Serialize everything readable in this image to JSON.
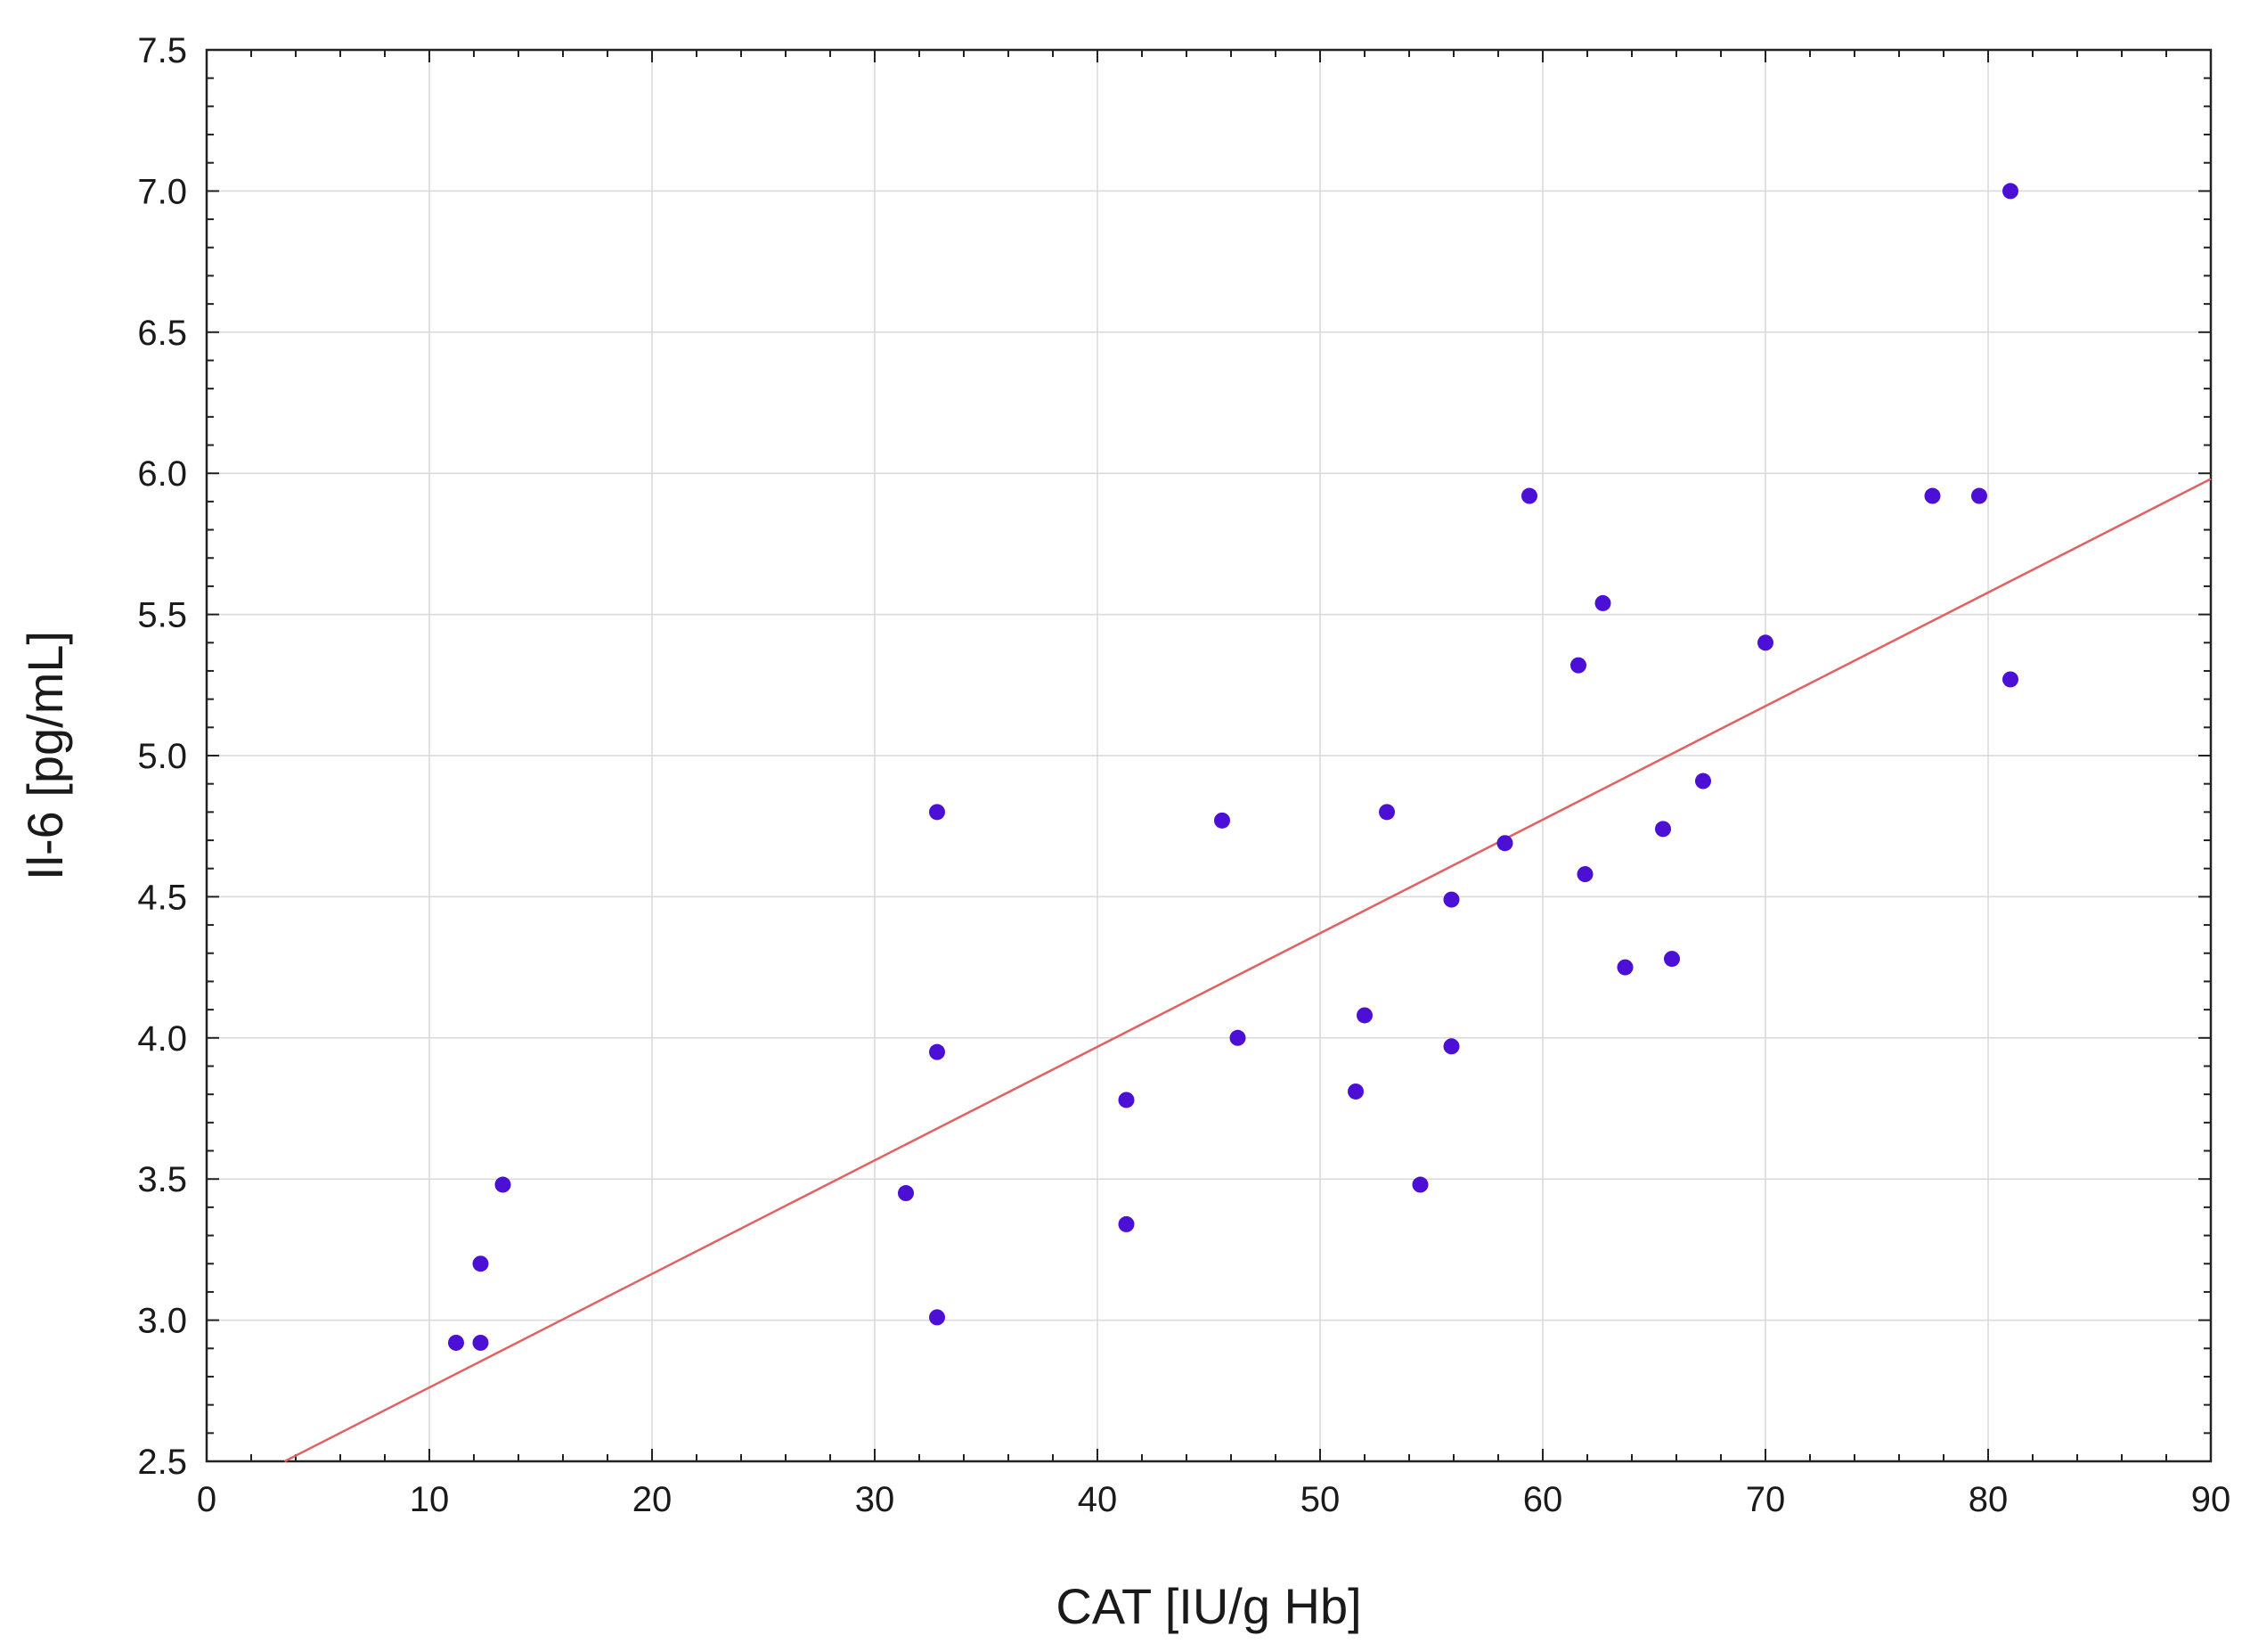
{
  "chart_data": {
    "type": "scatter",
    "title": "",
    "xlabel": "CAT [IU/g Hb]",
    "ylabel": "Il-6 [pg/mL]",
    "xlim": [
      0,
      90
    ],
    "ylim": [
      2.5,
      7.5
    ],
    "x_ticks": [
      "0",
      "10",
      "20",
      "30",
      "40",
      "50",
      "60",
      "70",
      "80",
      "90"
    ],
    "y_ticks": [
      "2.5",
      "3.0",
      "3.5",
      "4.0",
      "4.5",
      "5.0",
      "5.5",
      "6.0",
      "6.5",
      "7.0",
      "7.5"
    ],
    "grid": true,
    "point_color": "#4b0fd6",
    "line_color": "#e06262",
    "points": [
      {
        "x": 11.2,
        "y": 2.92
      },
      {
        "x": 12.3,
        "y": 2.92
      },
      {
        "x": 12.3,
        "y": 3.2
      },
      {
        "x": 13.3,
        "y": 3.48
      },
      {
        "x": 31.4,
        "y": 3.45
      },
      {
        "x": 32.8,
        "y": 3.01
      },
      {
        "x": 32.8,
        "y": 3.95
      },
      {
        "x": 32.8,
        "y": 4.8
      },
      {
        "x": 41.3,
        "y": 3.34
      },
      {
        "x": 41.3,
        "y": 3.78
      },
      {
        "x": 45.6,
        "y": 4.77
      },
      {
        "x": 46.3,
        "y": 4.0
      },
      {
        "x": 51.6,
        "y": 3.81
      },
      {
        "x": 52.0,
        "y": 4.08
      },
      {
        "x": 53.0,
        "y": 4.8
      },
      {
        "x": 54.5,
        "y": 3.48
      },
      {
        "x": 55.9,
        "y": 3.97
      },
      {
        "x": 55.9,
        "y": 4.49
      },
      {
        "x": 58.3,
        "y": 4.69
      },
      {
        "x": 59.4,
        "y": 5.92
      },
      {
        "x": 61.6,
        "y": 5.32
      },
      {
        "x": 61.9,
        "y": 4.58
      },
      {
        "x": 62.7,
        "y": 5.54
      },
      {
        "x": 63.7,
        "y": 4.25
      },
      {
        "x": 65.4,
        "y": 4.74
      },
      {
        "x": 65.8,
        "y": 4.28
      },
      {
        "x": 67.2,
        "y": 4.91
      },
      {
        "x": 70.0,
        "y": 5.4
      },
      {
        "x": 77.5,
        "y": 5.92
      },
      {
        "x": 79.6,
        "y": 5.92
      },
      {
        "x": 81.0,
        "y": 5.27
      },
      {
        "x": 81.0,
        "y": 7.0
      }
    ],
    "fit_line": {
      "x": [
        3.5,
        90
      ],
      "y": [
        2.5,
        5.98
      ]
    }
  }
}
